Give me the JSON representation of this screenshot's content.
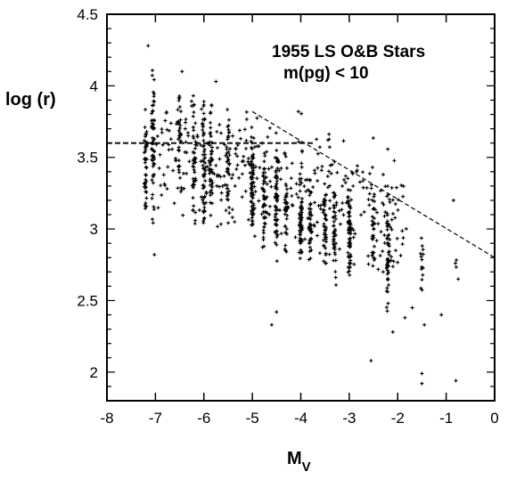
{
  "chart_data": {
    "type": "scatter",
    "title": "",
    "xlabel": "M",
    "xlabel_subscript": "V",
    "ylabel": "log (r)",
    "xlim": [
      -8,
      0
    ],
    "ylim": [
      1.8,
      4.5
    ],
    "xticks": [
      "-8",
      "-7",
      "-6",
      "-5",
      "-4",
      "-3",
      "-2",
      "-1",
      "0"
    ],
    "yticks": [
      "2",
      "2.5",
      "3",
      "3.5",
      "4",
      "4.5"
    ],
    "grid": false,
    "legend": "none",
    "annotations": [
      "1955 LS O&B Stars",
      "m(pg) < 10"
    ],
    "point_color": "#000000",
    "reference_lines": [
      {
        "style": "dashed",
        "x": [
          -8.0,
          -3.7
        ],
        "y": [
          3.6,
          3.6
        ]
      },
      {
        "style": "dashed",
        "x": [
          -5.0,
          0.0
        ],
        "y": [
          3.82,
          2.8
        ]
      }
    ],
    "columns": [
      {
        "x": -7.2,
        "ymin": 3.02,
        "ymax": 3.95,
        "n": 44
      },
      {
        "x": -7.05,
        "ymin": 3.0,
        "ymax": 4.18,
        "n": 60
      },
      {
        "x": -6.5,
        "ymin": 3.2,
        "ymax": 4.05,
        "n": 34
      },
      {
        "x": -6.2,
        "ymin": 3.0,
        "ymax": 4.0,
        "n": 40
      },
      {
        "x": -6.0,
        "ymin": 2.92,
        "ymax": 3.98,
        "n": 52
      },
      {
        "x": -5.85,
        "ymin": 3.0,
        "ymax": 3.9,
        "n": 46
      },
      {
        "x": -5.5,
        "ymin": 3.0,
        "ymax": 3.8,
        "n": 40
      },
      {
        "x": -5.0,
        "ymin": 2.85,
        "ymax": 3.75,
        "n": 66
      },
      {
        "x": -4.75,
        "ymin": 2.8,
        "ymax": 3.7,
        "n": 40
      },
      {
        "x": -4.5,
        "ymin": 2.75,
        "ymax": 3.6,
        "n": 56
      },
      {
        "x": -4.3,
        "ymin": 2.75,
        "ymax": 3.5,
        "n": 36
      },
      {
        "x": -4.0,
        "ymin": 2.7,
        "ymax": 3.6,
        "n": 58
      },
      {
        "x": -3.8,
        "ymin": 2.7,
        "ymax": 3.4,
        "n": 36
      },
      {
        "x": -3.5,
        "ymin": 2.65,
        "ymax": 3.35,
        "n": 42
      },
      {
        "x": -3.3,
        "ymin": 2.6,
        "ymax": 3.3,
        "n": 40
      },
      {
        "x": -3.0,
        "ymin": 2.6,
        "ymax": 3.35,
        "n": 62
      },
      {
        "x": -2.5,
        "ymin": 2.6,
        "ymax": 3.3,
        "n": 30
      },
      {
        "x": -2.2,
        "ymin": 2.3,
        "ymax": 3.3,
        "n": 44
      },
      {
        "x": -1.5,
        "ymin": 2.5,
        "ymax": 3.05,
        "n": 14
      },
      {
        "x": -0.8,
        "ymin": 2.72,
        "ymax": 2.8,
        "n": 3
      }
    ],
    "cloud": {
      "xmin": -7.0,
      "xmax": -1.8,
      "intercept": 2.85,
      "slope": -0.11,
      "spread": 0.3,
      "n": 380
    },
    "outliers": [
      {
        "x": -7.15,
        "y": 4.28
      },
      {
        "x": -7.02,
        "y": 2.82
      },
      {
        "x": -6.45,
        "y": 4.1
      },
      {
        "x": -5.75,
        "y": 4.03
      },
      {
        "x": -4.5,
        "y": 2.42
      },
      {
        "x": -4.6,
        "y": 2.33
      },
      {
        "x": -4.05,
        "y": 3.82
      },
      {
        "x": -3.3,
        "y": 3.47
      },
      {
        "x": -2.85,
        "y": 3.4
      },
      {
        "x": -2.55,
        "y": 2.08
      },
      {
        "x": -2.3,
        "y": 3.38
      },
      {
        "x": -2.1,
        "y": 2.28
      },
      {
        "x": -1.85,
        "y": 2.38
      },
      {
        "x": -1.7,
        "y": 2.45
      },
      {
        "x": -1.5,
        "y": 1.99
      },
      {
        "x": -1.5,
        "y": 1.92
      },
      {
        "x": -1.45,
        "y": 2.33
      },
      {
        "x": -1.1,
        "y": 2.4
      },
      {
        "x": -0.85,
        "y": 3.2
      },
      {
        "x": -0.8,
        "y": 1.94
      },
      {
        "x": -0.75,
        "y": 2.65
      }
    ]
  }
}
